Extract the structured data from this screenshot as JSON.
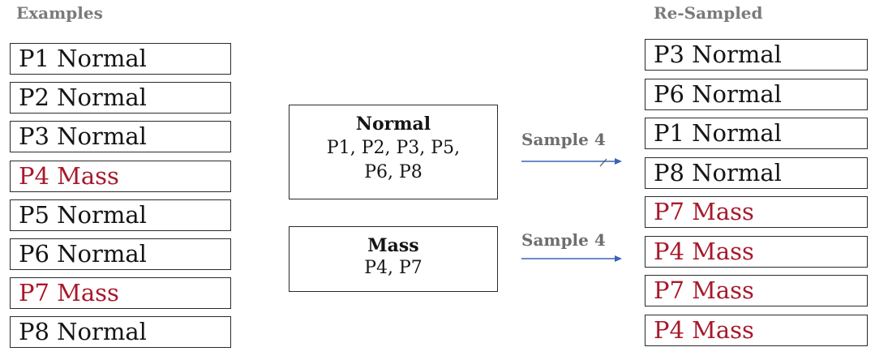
{
  "headings": {
    "examples": "Examples",
    "resampled": "Re-Sampled"
  },
  "examples": [
    {
      "label": "P1 Normal",
      "class": "normal"
    },
    {
      "label": "P2 Normal",
      "class": "normal"
    },
    {
      "label": "P3 Normal",
      "class": "normal"
    },
    {
      "label": "P4 Mass",
      "class": "mass"
    },
    {
      "label": "P5 Normal",
      "class": "normal"
    },
    {
      "label": "P6 Normal",
      "class": "normal"
    },
    {
      "label": "P7 Mass",
      "class": "mass"
    },
    {
      "label": "P8 Normal",
      "class": "normal"
    }
  ],
  "groups": {
    "normal": {
      "title": "Normal",
      "members_line1": "P1, P2, P3, P5,",
      "members_line2": "P6, P8"
    },
    "mass": {
      "title": "Mass",
      "members": "P4, P7"
    }
  },
  "arrows": {
    "top_label": "Sample 4",
    "bottom_label": "Sample 4"
  },
  "resampled": [
    {
      "label": "P3 Normal",
      "class": "normal"
    },
    {
      "label": "P6 Normal",
      "class": "normal"
    },
    {
      "label": "P1 Normal",
      "class": "normal"
    },
    {
      "label": "P8 Normal",
      "class": "normal"
    },
    {
      "label": "P7 Mass",
      "class": "mass"
    },
    {
      "label": "P4 Mass",
      "class": "mass"
    },
    {
      "label": "P7 Mass",
      "class": "mass"
    },
    {
      "label": "P4 Mass",
      "class": "mass"
    }
  ],
  "colors": {
    "normal_text": "#151515",
    "mass_text": "#a8182a",
    "arrow": "#3a63b8"
  }
}
